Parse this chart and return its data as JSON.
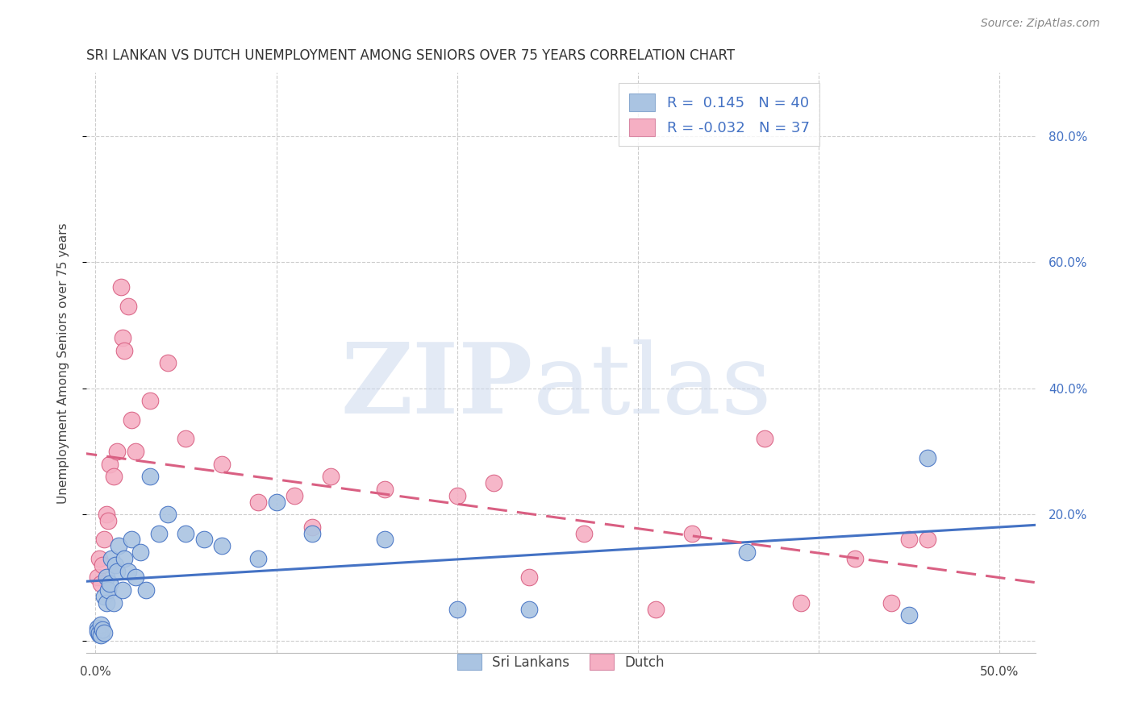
{
  "title": "SRI LANKAN VS DUTCH UNEMPLOYMENT AMONG SENIORS OVER 75 YEARS CORRELATION CHART",
  "source": "Source: ZipAtlas.com",
  "ylabel": "Unemployment Among Seniors over 75 years",
  "xlim": [
    -0.005,
    0.52
  ],
  "ylim": [
    -0.02,
    0.9
  ],
  "xticks": [
    0.0,
    0.1,
    0.2,
    0.3,
    0.4,
    0.5
  ],
  "xticklabels": [
    "0.0%",
    "",
    "",
    "",
    "",
    "50.0%"
  ],
  "yticks_right": [
    0.2,
    0.4,
    0.6,
    0.8
  ],
  "yticklabels_right": [
    "20.0%",
    "40.0%",
    "60.0%",
    "80.0%"
  ],
  "watermark_zip": "ZIP",
  "watermark_atlas": "atlas",
  "legend_r1": "R =  0.145",
  "legend_n1": "N = 40",
  "legend_r2": "R = -0.032",
  "legend_n2": "N = 37",
  "sri_lankans_color": "#aac4e2",
  "dutch_color": "#f5afc3",
  "sri_lankans_line_color": "#4472c4",
  "dutch_line_color": "#d95f82",
  "background_color": "#ffffff",
  "sri_lankans_x": [
    0.001,
    0.001,
    0.002,
    0.002,
    0.003,
    0.003,
    0.004,
    0.005,
    0.005,
    0.006,
    0.006,
    0.007,
    0.008,
    0.009,
    0.01,
    0.011,
    0.012,
    0.013,
    0.015,
    0.016,
    0.018,
    0.02,
    0.022,
    0.025,
    0.028,
    0.03,
    0.035,
    0.04,
    0.05,
    0.06,
    0.07,
    0.09,
    0.1,
    0.12,
    0.16,
    0.2,
    0.24,
    0.36,
    0.45,
    0.46
  ],
  "sri_lankans_y": [
    0.02,
    0.015,
    0.01,
    0.012,
    0.008,
    0.025,
    0.018,
    0.012,
    0.07,
    0.06,
    0.1,
    0.08,
    0.09,
    0.13,
    0.06,
    0.12,
    0.11,
    0.15,
    0.08,
    0.13,
    0.11,
    0.16,
    0.1,
    0.14,
    0.08,
    0.26,
    0.17,
    0.2,
    0.17,
    0.16,
    0.15,
    0.13,
    0.22,
    0.17,
    0.16,
    0.05,
    0.05,
    0.14,
    0.04,
    0.29
  ],
  "dutch_x": [
    0.001,
    0.002,
    0.003,
    0.004,
    0.005,
    0.006,
    0.007,
    0.008,
    0.01,
    0.012,
    0.014,
    0.015,
    0.016,
    0.018,
    0.02,
    0.022,
    0.03,
    0.04,
    0.05,
    0.07,
    0.09,
    0.11,
    0.12,
    0.13,
    0.16,
    0.2,
    0.22,
    0.24,
    0.27,
    0.31,
    0.33,
    0.37,
    0.39,
    0.42,
    0.44,
    0.45,
    0.46
  ],
  "dutch_y": [
    0.1,
    0.13,
    0.09,
    0.12,
    0.16,
    0.2,
    0.19,
    0.28,
    0.26,
    0.3,
    0.56,
    0.48,
    0.46,
    0.53,
    0.35,
    0.3,
    0.38,
    0.44,
    0.32,
    0.28,
    0.22,
    0.23,
    0.18,
    0.26,
    0.24,
    0.23,
    0.25,
    0.1,
    0.17,
    0.05,
    0.17,
    0.32,
    0.06,
    0.13,
    0.06,
    0.16,
    0.16
  ]
}
